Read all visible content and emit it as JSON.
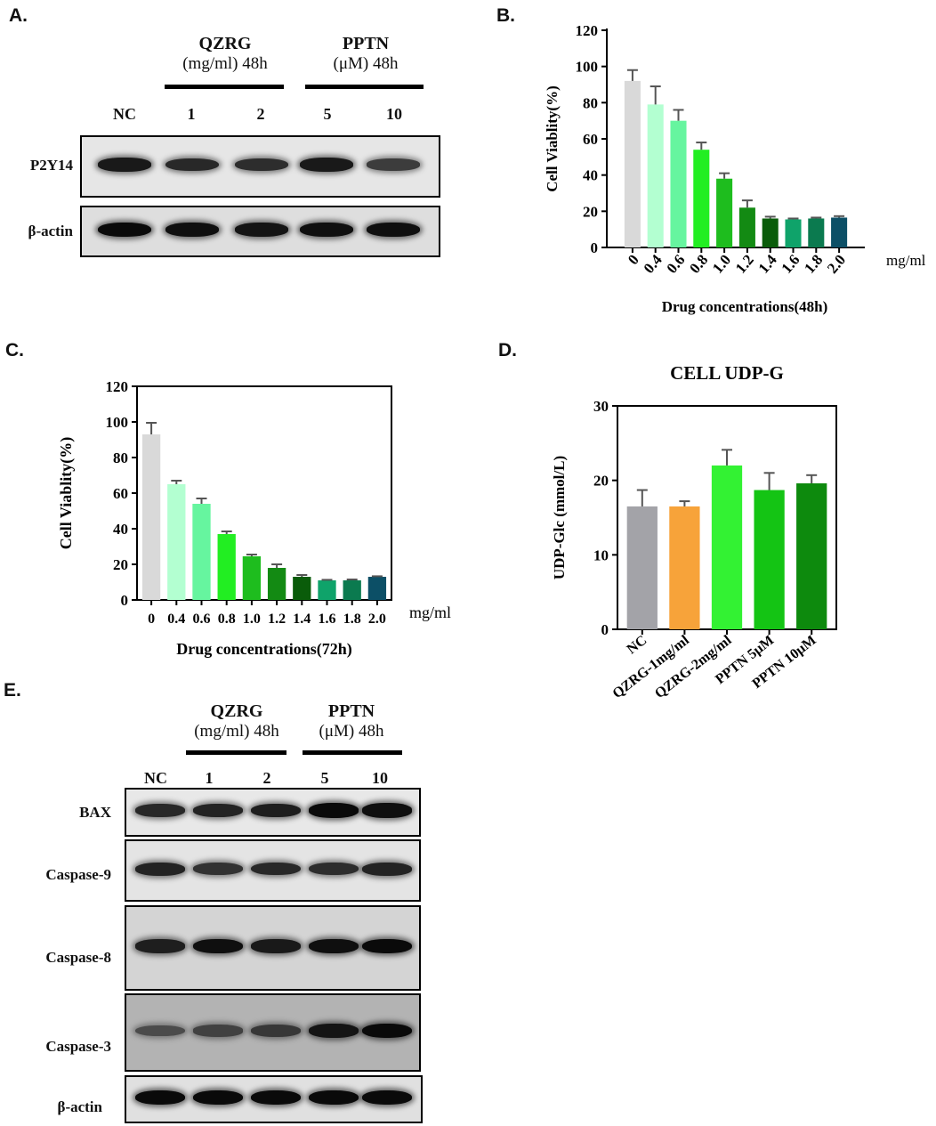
{
  "panels": {
    "a": "A.",
    "b": "B.",
    "c": "C.",
    "d": "D.",
    "e": "E."
  },
  "blot_a": {
    "qzrg_title": "QZRG",
    "qzrg_sub": "(mg/ml) 48h",
    "pptn_title": "PPTN",
    "pptn_sub": "(μM) 48h",
    "lanes": [
      "NC",
      "1",
      "2",
      "5",
      "10"
    ],
    "rows": [
      {
        "label": "P2Y14",
        "intensity": [
          0.85,
          0.7,
          0.65,
          0.85,
          0.5
        ]
      },
      {
        "label": "β-actin",
        "intensity": [
          1.0,
          0.95,
          0.9,
          0.95,
          0.95
        ]
      }
    ]
  },
  "blot_e": {
    "qzrg_title": "QZRG",
    "qzrg_sub": "(mg/ml) 48h",
    "pptn_title": "PPTN",
    "pptn_sub": "(μM) 48h",
    "lanes": [
      "NC",
      "1",
      "2",
      "5",
      "10"
    ],
    "rows": [
      {
        "label": "BAX",
        "intensity": [
          0.7,
          0.75,
          0.8,
          1.0,
          0.95
        ]
      },
      {
        "label": "Caspase-9",
        "intensity": [
          0.75,
          0.6,
          0.7,
          0.65,
          0.75
        ]
      },
      {
        "label": "Caspase-8",
        "intensity": [
          0.8,
          0.95,
          0.85,
          0.95,
          1.0
        ]
      },
      {
        "label": "Caspase-3",
        "intensity": [
          0.35,
          0.45,
          0.55,
          0.9,
          1.0
        ]
      },
      {
        "label": "β-actin",
        "intensity": [
          1.0,
          1.0,
          1.0,
          1.0,
          1.0
        ]
      }
    ]
  },
  "chart_data": [
    {
      "id": "b",
      "type": "bar",
      "title": "",
      "xlabel": "Drug concentrations(48h)",
      "ylabel": "Cell Viablity(%)",
      "unit": "mg/ml",
      "categories": [
        "0",
        "0.4",
        "0.6",
        "0.8",
        "1.0",
        "1.2",
        "1.4",
        "1.6",
        "1.8",
        "2.0"
      ],
      "values": [
        92,
        79,
        70,
        54,
        38,
        22,
        16,
        15.5,
        16,
        16.5
      ],
      "errors": [
        6,
        10,
        6,
        4,
        3,
        4,
        1,
        0.5,
        0.5,
        0.8
      ],
      "colors": [
        "#d9d9d9",
        "#b3ffd1",
        "#66f59f",
        "#22ee22",
        "#1ebd1e",
        "#138a13",
        "#0a5c0a",
        "#0fa36a",
        "#0b7a4f",
        "#0c4f66"
      ],
      "ylim": [
        0,
        120
      ],
      "yticks": [
        0,
        20,
        40,
        60,
        80,
        100,
        120
      ],
      "rotated_labels": true
    },
    {
      "id": "c",
      "type": "bar",
      "title": "",
      "xlabel": "Drug concentrations(72h)",
      "ylabel": "Cell Viablity(%)",
      "unit": "mg/ml",
      "categories": [
        "0",
        "0.4",
        "0.6",
        "0.8",
        "1.0",
        "1.2",
        "1.4",
        "1.6",
        "1.8",
        "2.0"
      ],
      "values": [
        93,
        65,
        54,
        37,
        24.5,
        18,
        13,
        11,
        11,
        13
      ],
      "errors": [
        6.5,
        2,
        3,
        1.5,
        1,
        2,
        1,
        0.3,
        0.5,
        0.3
      ],
      "colors": [
        "#d9d9d9",
        "#b3ffd1",
        "#66f59f",
        "#22ee22",
        "#1ebd1e",
        "#138a13",
        "#0a5c0a",
        "#0fa36a",
        "#0b7a4f",
        "#0c4f66"
      ],
      "ylim": [
        0,
        120
      ],
      "yticks": [
        0,
        20,
        40,
        60,
        80,
        100,
        120
      ],
      "rotated_labels": false
    },
    {
      "id": "d",
      "type": "bar",
      "title": "CELL UDP-G",
      "xlabel": "",
      "ylabel": "UDP-Glc (mmol/L)",
      "unit": "",
      "categories": [
        "NC",
        "QZRG-1mg/ml",
        "QZRG-2mg/ml",
        "PPTN 5μM",
        "PPTN 10μM"
      ],
      "values": [
        16.5,
        16.5,
        22,
        18.7,
        19.6
      ],
      "errors": [
        2.2,
        0.7,
        2.1,
        2.3,
        1.1
      ],
      "colors": [
        "#a3a3a8",
        "#f7a33a",
        "#33f233",
        "#14c414",
        "#0d8a0d"
      ],
      "ylim": [
        0,
        30
      ],
      "yticks": [
        0,
        10,
        20,
        30
      ],
      "rotated_labels": true
    }
  ]
}
